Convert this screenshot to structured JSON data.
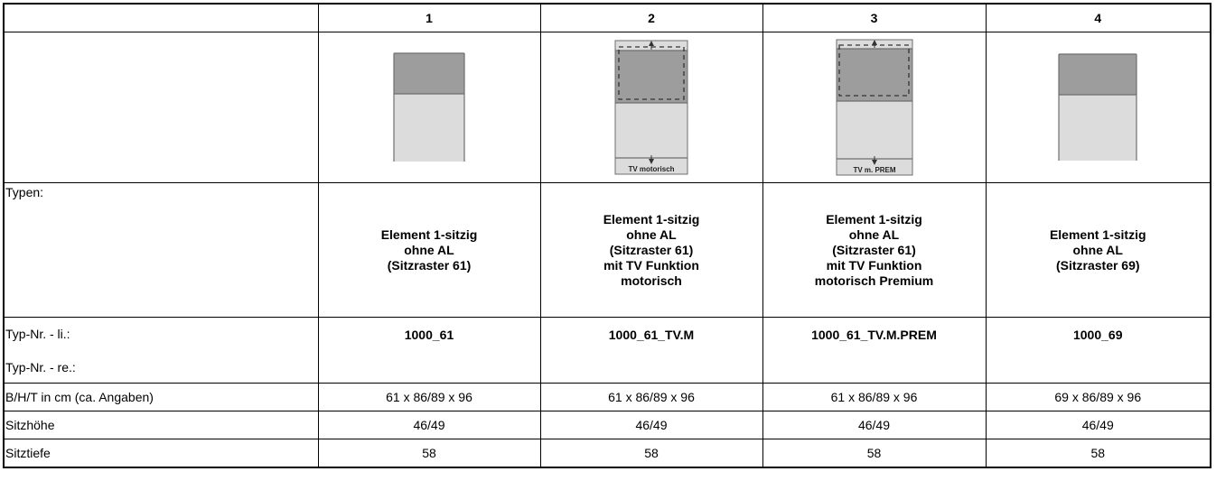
{
  "columns": [
    "1",
    "2",
    "3",
    "4"
  ],
  "colors": {
    "backrest": "#9d9d9d",
    "seat": "#dcdcdc",
    "frame": "#6e6e6e"
  },
  "images": [
    {
      "name": "element-1-sitzig-61-diagram",
      "label": ""
    },
    {
      "name": "element-tv-motorisch-diagram",
      "label": "TV motorisch"
    },
    {
      "name": "element-tv-premium-diagram",
      "label": "TV m. PREM"
    },
    {
      "name": "element-1-sitzig-69-diagram",
      "label": ""
    }
  ],
  "rows": {
    "typen": {
      "label": "Typen:",
      "values": [
        "Element 1-sitzig\nohne AL\n(Sitzraster 61)",
        "Element 1-sitzig\nohne AL\n(Sitzraster 61)\nmit TV Funktion\nmotorisch",
        "Element 1-sitzig\nohne AL\n(Sitzraster 61)\nmit TV Funktion\nmotorisch Premium",
        "Element 1-sitzig\nohne AL\n(Sitzraster 69)"
      ]
    },
    "typ_nr": {
      "label_li": "Typ-Nr. - li.:",
      "label_re": "Typ-Nr. - re.:",
      "values": [
        "1000_61",
        "1000_61_TV.M",
        "1000_61_TV.M.PREM",
        "1000_69"
      ]
    },
    "bht": {
      "label": "B/H/T in cm (ca. Angaben)",
      "values": [
        "61 x 86/89 x 96",
        "61 x 86/89 x 96",
        "61 x 86/89 x 96",
        "69 x 86/89 x 96"
      ]
    },
    "sitzhoehe": {
      "label": "Sitzhöhe",
      "values": [
        "46/49",
        "46/49",
        "46/49",
        "46/49"
      ]
    },
    "sitztiefe": {
      "label": "Sitztiefe",
      "values": [
        "58",
        "58",
        "58",
        "58"
      ]
    }
  }
}
